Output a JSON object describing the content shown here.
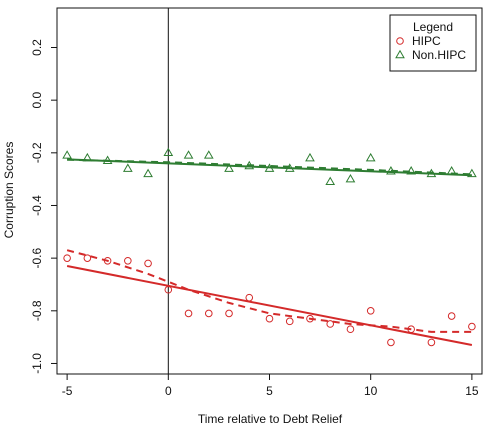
{
  "chart_data": {
    "type": "scatter",
    "title": "",
    "xlabel": "Time relative to Debt Relief",
    "ylabel": "Corruption Scores",
    "xlim": [
      -5.5,
      15.5
    ],
    "ylim": [
      -1.04,
      0.35
    ],
    "xticks": [
      "-5",
      "0",
      "5",
      "10",
      "15"
    ],
    "yticks": [
      "0.2",
      "0.0",
      "-0.2",
      "-0.4",
      "-0.6",
      "-0.8",
      "-1.0"
    ],
    "vline_x": 0,
    "grid": false,
    "legend": {
      "title": "Legend",
      "position": "top-right",
      "entries": [
        "HIPC",
        "Non.HIPC"
      ]
    },
    "series": [
      {
        "name": "HIPC",
        "marker": "circle",
        "color": "#d42a2a",
        "x": [
          -5,
          -4,
          -3,
          -2,
          -1,
          0,
          1,
          2,
          3,
          4,
          5,
          6,
          7,
          8,
          9,
          10,
          11,
          12,
          13,
          14,
          15
        ],
        "y": [
          -0.6,
          -0.6,
          -0.61,
          -0.61,
          -0.62,
          -0.72,
          -0.81,
          -0.81,
          -0.81,
          -0.75,
          -0.83,
          -0.84,
          -0.83,
          -0.85,
          -0.87,
          -0.8,
          -0.92,
          -0.87,
          -0.92,
          -0.82,
          -0.86
        ],
        "fit_linear": [
          [
            -5,
            -0.63
          ],
          [
            15,
            -0.93
          ]
        ],
        "fit_smooth": [
          [
            -5,
            -0.57
          ],
          [
            -3,
            -0.61
          ],
          [
            -1,
            -0.66
          ],
          [
            1,
            -0.72
          ],
          [
            3,
            -0.77
          ],
          [
            5,
            -0.81
          ],
          [
            7,
            -0.83
          ],
          [
            9,
            -0.85
          ],
          [
            11,
            -0.86
          ],
          [
            13,
            -0.88
          ],
          [
            15,
            -0.88
          ]
        ]
      },
      {
        "name": "Non.HIPC",
        "marker": "triangle",
        "color": "#2e7d32",
        "x": [
          -5,
          -4,
          -3,
          -2,
          -1,
          0,
          1,
          2,
          3,
          4,
          5,
          6,
          7,
          8,
          9,
          10,
          11,
          12,
          13,
          14,
          15
        ],
        "y": [
          -0.21,
          -0.22,
          -0.23,
          -0.26,
          -0.28,
          -0.2,
          -0.21,
          -0.21,
          -0.26,
          -0.25,
          -0.26,
          -0.26,
          -0.22,
          -0.31,
          -0.3,
          -0.22,
          -0.27,
          -0.27,
          -0.28,
          -0.27,
          -0.28
        ],
        "fit_linear": [
          [
            -5,
            -0.225
          ],
          [
            15,
            -0.285
          ]
        ],
        "fit_smooth": [
          [
            -5,
            -0.226
          ],
          [
            0,
            -0.236
          ],
          [
            5,
            -0.25
          ],
          [
            10,
            -0.265
          ],
          [
            15,
            -0.282
          ]
        ]
      }
    ]
  }
}
